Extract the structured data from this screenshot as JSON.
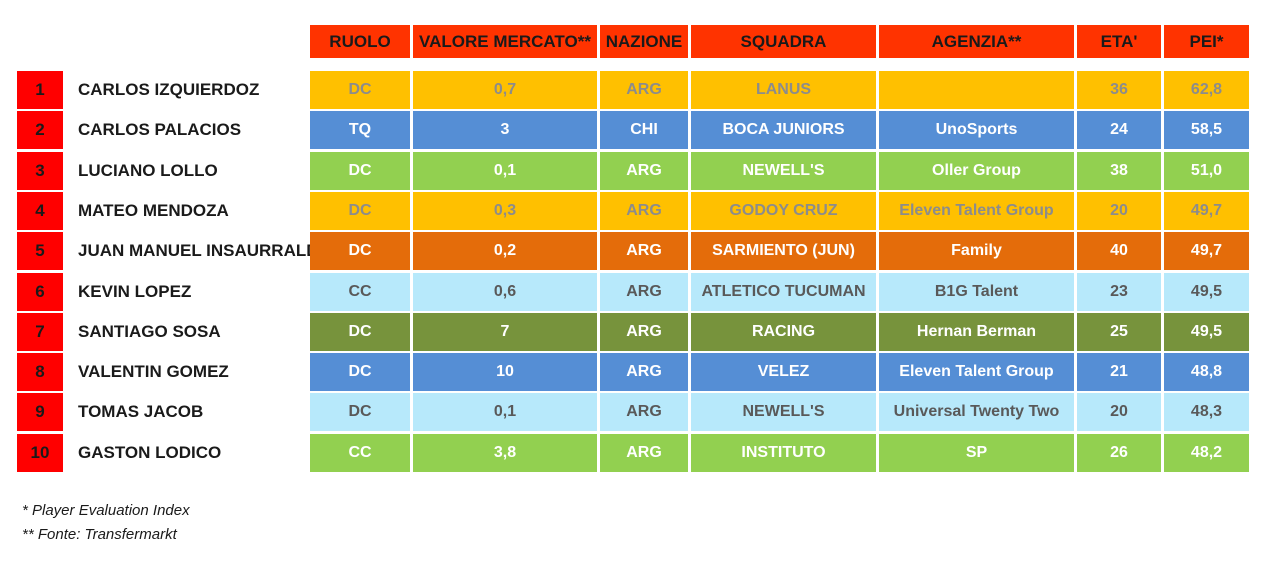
{
  "headers": [
    "RUOLO",
    "VALORE MERCATO**",
    "NAZIONE",
    "SQUADRA",
    "AGENZIA**",
    "ETA'",
    "PEI*"
  ],
  "rows": [
    {
      "rank": "1",
      "name": "CARLOS IZQUIERDOZ",
      "ruolo": "DC",
      "valore": "0,7",
      "nazione": "ARG",
      "squadra": "LANUS",
      "agenzia": "",
      "eta": "36",
      "pei": "62,8",
      "bg": "#ffc000",
      "fg": "#8c8c8c"
    },
    {
      "rank": "2",
      "name": "CARLOS PALACIOS",
      "ruolo": "TQ",
      "valore": "3",
      "nazione": "CHI",
      "squadra": "BOCA JUNIORS",
      "agenzia": "UnoSports",
      "eta": "24",
      "pei": "58,5",
      "bg": "#558ed5",
      "fg": "#ffffff"
    },
    {
      "rank": "3",
      "name": "LUCIANO LOLLO",
      "ruolo": "DC",
      "valore": "0,1",
      "nazione": "ARG",
      "squadra": "NEWELL'S",
      "agenzia": "Oller Group",
      "eta": "38",
      "pei": "51,0",
      "bg": "#92d050",
      "fg": "#ffffff"
    },
    {
      "rank": "4",
      "name": "MATEO MENDOZA",
      "ruolo": "DC",
      "valore": "0,3",
      "nazione": "ARG",
      "squadra": "GODOY CRUZ",
      "agenzia": "Eleven Talent Group",
      "eta": "20",
      "pei": "49,7",
      "bg": "#ffc000",
      "fg": "#8c8c8c"
    },
    {
      "rank": "5",
      "name": "JUAN MANUEL INSAURRALDE",
      "ruolo": "DC",
      "valore": "0,2",
      "nazione": "ARG",
      "squadra": "SARMIENTO (JUN)",
      "agenzia": "Family",
      "eta": "40",
      "pei": "49,7",
      "bg": "#e46c0a",
      "fg": "#ffffff"
    },
    {
      "rank": "6",
      "name": "KEVIN LOPEZ",
      "ruolo": "CC",
      "valore": "0,6",
      "nazione": "ARG",
      "squadra": "ATLETICO TUCUMAN",
      "agenzia": "B1G Talent",
      "eta": "23",
      "pei": "49,5",
      "bg": "#b7e9fb",
      "fg": "#595959"
    },
    {
      "rank": "7",
      "name": "SANTIAGO SOSA",
      "ruolo": "DC",
      "valore": "7",
      "nazione": "ARG",
      "squadra": "RACING",
      "agenzia": "Hernan Berman",
      "eta": "25",
      "pei": "49,5",
      "bg": "#77933c",
      "fg": "#ffffff"
    },
    {
      "rank": "8",
      "name": "VALENTIN GOMEZ",
      "ruolo": "DC",
      "valore": "10",
      "nazione": "ARG",
      "squadra": "VELEZ",
      "agenzia": "Eleven Talent Group",
      "eta": "21",
      "pei": "48,8",
      "bg": "#558ed5",
      "fg": "#ffffff"
    },
    {
      "rank": "9",
      "name": "TOMAS JACOB",
      "ruolo": "DC",
      "valore": "0,1",
      "nazione": "ARG",
      "squadra": "NEWELL'S",
      "agenzia": "Universal Twenty Two",
      "eta": "20",
      "pei": "48,3",
      "bg": "#b7e9fb",
      "fg": "#595959"
    },
    {
      "rank": "10",
      "name": "GASTON LODICO",
      "ruolo": "CC",
      "valore": "3,8",
      "nazione": "ARG",
      "squadra": "INSTITUTO",
      "agenzia": "SP",
      "eta": "26",
      "pei": "48,2",
      "bg": "#92d050",
      "fg": "#ffffff"
    }
  ],
  "footnotes": [
    "* Player Evaluation Index",
    "** Fonte: Transfermarkt"
  ]
}
